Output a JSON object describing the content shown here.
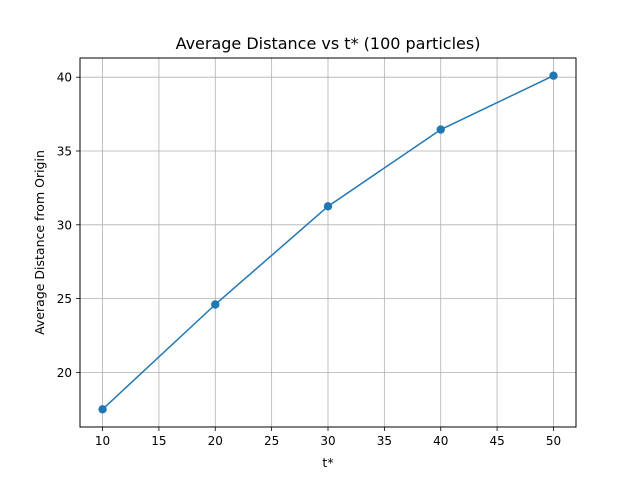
{
  "chart_data": {
    "type": "line",
    "title": "Average Distance vs t* (100 particles)",
    "xlabel": "t*",
    "ylabel": "Average Distance from Origin",
    "xlim": [
      8,
      52
    ],
    "ylim": [
      16.3,
      41.3
    ],
    "xticks": [
      10,
      15,
      20,
      25,
      30,
      35,
      40,
      45,
      50
    ],
    "yticks": [
      20,
      25,
      30,
      35,
      40
    ],
    "grid": true,
    "series": [
      {
        "x": [
          10,
          20,
          30,
          40,
          50
        ],
        "y": [
          17.5,
          24.6,
          31.25,
          36.45,
          40.1
        ],
        "color": "#1f77b4",
        "marker": "circle"
      }
    ]
  }
}
